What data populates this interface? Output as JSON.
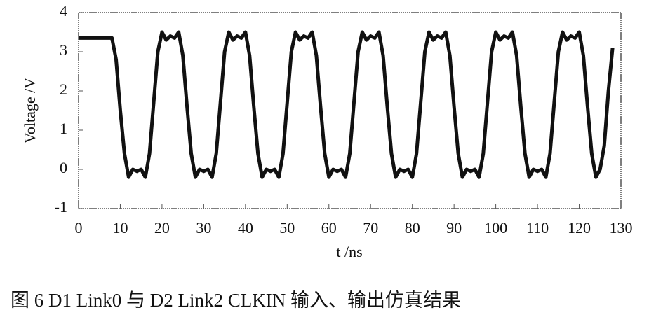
{
  "chart_data": {
    "type": "line",
    "x_label": "t /ns",
    "y_label": "Voltage /V",
    "caption": "图 6  D1 Link0 与 D2 Link2 CLKIN 输入、输出仿真结果",
    "xlim": [
      0,
      130
    ],
    "xticks": [
      0,
      10,
      20,
      30,
      40,
      50,
      60,
      70,
      80,
      90,
      100,
      110,
      120,
      130
    ],
    "ylim": [
      -1,
      4
    ],
    "yticks": [
      -1,
      0,
      1,
      2,
      3,
      4
    ],
    "x": [
      0,
      8,
      9,
      10,
      11,
      12,
      13,
      14,
      15,
      16,
      17,
      18,
      19,
      20,
      21,
      22,
      23,
      24,
      25,
      26,
      27,
      28,
      29,
      30,
      31,
      32,
      33,
      34,
      35,
      36,
      37,
      38,
      39,
      40,
      41,
      42,
      43,
      44,
      45,
      46,
      47,
      48,
      49,
      50,
      51,
      52,
      53,
      54,
      55,
      56,
      57,
      58,
      59,
      60,
      61,
      62,
      63,
      64,
      65,
      66,
      67,
      68,
      69,
      70,
      71,
      72,
      73,
      74,
      75,
      76,
      77,
      78,
      79,
      80,
      81,
      82,
      83,
      84,
      85,
      86,
      87,
      88,
      89,
      90,
      91,
      92,
      93,
      94,
      95,
      96,
      97,
      98,
      99,
      100,
      101,
      102,
      103,
      104,
      105,
      106,
      107,
      108,
      109,
      110,
      111,
      112,
      113,
      114,
      115,
      116,
      117,
      118,
      119,
      120,
      121,
      122,
      123,
      124,
      125,
      126,
      127,
      128
    ],
    "series": [
      {
        "color": "#111111",
        "values": [
          3.35,
          3.35,
          2.8,
          1.5,
          0.4,
          -0.2,
          0,
          -0.05,
          0,
          -0.2,
          0.4,
          1.7,
          3.0,
          3.5,
          3.3,
          3.4,
          3.35,
          3.5,
          2.9,
          1.6,
          0.4,
          -0.2,
          0,
          -0.05,
          0,
          -0.2,
          0.4,
          1.7,
          3.0,
          3.5,
          3.3,
          3.4,
          3.35,
          3.5,
          2.9,
          1.6,
          0.4,
          -0.2,
          0,
          -0.05,
          0,
          -0.2,
          0.4,
          1.7,
          3.0,
          3.5,
          3.3,
          3.4,
          3.35,
          3.5,
          2.9,
          1.6,
          0.4,
          -0.2,
          0,
          -0.05,
          0,
          -0.2,
          0.4,
          1.7,
          3.0,
          3.5,
          3.3,
          3.4,
          3.35,
          3.5,
          2.9,
          1.6,
          0.4,
          -0.2,
          0,
          -0.05,
          0,
          -0.2,
          0.4,
          1.7,
          3.0,
          3.5,
          3.3,
          3.4,
          3.35,
          3.5,
          2.9,
          1.6,
          0.4,
          -0.2,
          0,
          -0.05,
          0,
          -0.2,
          0.4,
          1.7,
          3.0,
          3.5,
          3.3,
          3.4,
          3.35,
          3.5,
          2.9,
          1.6,
          0.4,
          -0.2,
          0,
          -0.05,
          0,
          -0.2,
          0.4,
          1.7,
          3.0,
          3.5,
          3.3,
          3.4,
          3.35,
          3.5,
          2.9,
          1.6,
          0.4,
          -0.2,
          0,
          0.6,
          2,
          3.1
        ]
      }
    ]
  }
}
